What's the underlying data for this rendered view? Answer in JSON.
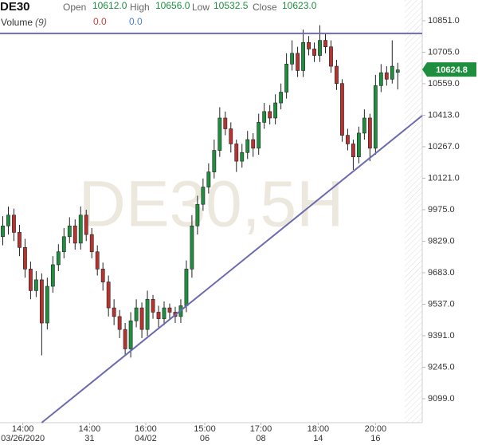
{
  "chart_data": {
    "type": "candlestick",
    "symbol": "DE30",
    "header": {
      "open_label": "Open",
      "open": {
        "value": 10612,
        "label": "10612.0"
      },
      "high_label": "High",
      "high": {
        "value": 10656,
        "label": "10656.0"
      },
      "low_label": "Low",
      "low": 10532.5,
      "close_label": "Close",
      "close": {
        "value": 10623,
        "label": "10623.0"
      },
      "volume_label": "Volume",
      "volume_param": "(9)",
      "volume_a": {
        "value": 0,
        "label": "0.0"
      },
      "volume_b": {
        "value": 0,
        "label": "0.0"
      }
    },
    "watermark": "DE30,5H",
    "last_price": 10624.8,
    "up_color": "#1f8f3f",
    "down_color": "#b8322f",
    "open": [
      9850,
      9900,
      9950,
      9870,
      9800,
      9700,
      9600,
      9650,
      9450,
      9620,
      9720,
      9780,
      9850,
      9900,
      9820,
      9950,
      9860,
      9780,
      9700,
      9640,
      9520,
      9480,
      9420,
      9330,
      9460,
      9520,
      9420,
      9560,
      9500,
      9470,
      9520,
      9500,
      9480,
      9530,
      9700,
      9900,
      10000,
      10080,
      10150,
      10250,
      10400,
      10350,
      10280,
      10200,
      10240,
      10300,
      10260,
      10380,
      10430,
      10400,
      10470,
      10520,
      10650,
      10700,
      10620,
      10750,
      10720,
      10690,
      10760,
      10730,
      10640,
      10560,
      10320,
      10280,
      10220,
      10330,
      10400,
      10260,
      10550,
      10610,
      10580,
      10612
    ],
    "high": [
      9945,
      9990,
      9980,
      9905,
      9840,
      9735,
      9690,
      9680,
      9660,
      9760,
      9815,
      9890,
      9940,
      9930,
      9990,
      9975,
      9890,
      9810,
      9730,
      9670,
      9560,
      9510,
      9450,
      9500,
      9560,
      9545,
      9600,
      9580,
      9530,
      9550,
      9540,
      9525,
      9560,
      9740,
      9950,
      10040,
      10120,
      10190,
      10300,
      10450,
      10430,
      10380,
      10300,
      10280,
      10340,
      10330,
      10420,
      10470,
      10460,
      10510,
      10560,
      10700,
      10760,
      10730,
      10810,
      10780,
      10750,
      10830,
      10790,
      10760,
      10670,
      10580,
      10350,
      10300,
      10360,
      10440,
      10420,
      10600,
      10650,
      10640,
      10760,
      10656
    ],
    "low": [
      9810,
      9860,
      9830,
      9760,
      9660,
      9560,
      9570,
      9300,
      9420,
      9590,
      9690,
      9750,
      9820,
      9790,
      9790,
      9830,
      9750,
      9670,
      9600,
      9480,
      9440,
      9380,
      9300,
      9290,
      9430,
      9380,
      9390,
      9470,
      9430,
      9440,
      9470,
      9450,
      9450,
      9500,
      9660,
      9860,
      9970,
      10050,
      10120,
      10220,
      10320,
      10240,
      10150,
      10170,
      10210,
      10220,
      10230,
      10350,
      10370,
      10370,
      10440,
      10490,
      10620,
      10590,
      10590,
      10690,
      10660,
      10660,
      10700,
      10610,
      10530,
      10290,
      10250,
      10160,
      10190,
      10300,
      10200,
      10230,
      10520,
      10550,
      10560,
      10532.5
    ],
    "close": [
      9900,
      9950,
      9870,
      9800,
      9700,
      9600,
      9650,
      9450,
      9620,
      9720,
      9780,
      9850,
      9900,
      9820,
      9950,
      9860,
      9780,
      9700,
      9640,
      9520,
      9480,
      9420,
      9330,
      9460,
      9520,
      9420,
      9560,
      9500,
      9470,
      9520,
      9500,
      9480,
      9530,
      9700,
      9900,
      10000,
      10080,
      10150,
      10250,
      10400,
      10350,
      10280,
      10200,
      10240,
      10300,
      10260,
      10380,
      10430,
      10400,
      10470,
      10520,
      10650,
      10700,
      10620,
      10750,
      10720,
      10690,
      10760,
      10730,
      10640,
      10560,
      10320,
      10280,
      10220,
      10330,
      10400,
      10260,
      10550,
      10610,
      10580,
      10640,
      10623
    ],
    "xlim": [
      -0.5,
      75.4
    ],
    "ylim": [
      8988,
      10947
    ],
    "yticks": [
      {
        "value": 10851,
        "label": "10851.0"
      },
      {
        "value": 10705,
        "label": "10705.0"
      },
      {
        "value": 10559,
        "label": "10559.0"
      },
      {
        "value": 10413,
        "label": "10413.0"
      },
      {
        "value": 10267,
        "label": "10267.0"
      },
      {
        "value": 10121,
        "label": "10121.0"
      },
      {
        "value": 9975,
        "label": "9975.0"
      },
      {
        "value": 9829,
        "label": "9829.0"
      },
      {
        "value": 9683,
        "label": "9683.0"
      },
      {
        "value": 9537,
        "label": "9537.0"
      },
      {
        "value": 9391,
        "label": "9391.0"
      },
      {
        "value": 9245,
        "label": "9245.0"
      },
      {
        "value": 9099,
        "label": "9099.0"
      }
    ],
    "xticks": [
      {
        "value": 3.6,
        "label": "14:00",
        "date": "03/26/2020"
      },
      {
        "value": 15.6,
        "label": "14:00",
        "date": "31"
      },
      {
        "value": 25.7,
        "label": "16:00",
        "date": "04/02"
      },
      {
        "value": 36.3,
        "label": "15:00",
        "date": "06"
      },
      {
        "value": 46.4,
        "label": "17:00",
        "date": "08"
      },
      {
        "value": 56.7,
        "label": "18:00",
        "date": "14"
      },
      {
        "value": 67,
        "label": "20:00",
        "date": "16"
      }
    ],
    "trendlines": [
      {
        "x": [
          -0.5,
          75.4
        ],
        "y": [
          10792,
          10792
        ],
        "color": "#6b6bb0"
      },
      {
        "x": [
          7,
          75.4
        ],
        "y": [
          8988,
          10411
        ],
        "color": "#6b6bb0"
      }
    ]
  }
}
